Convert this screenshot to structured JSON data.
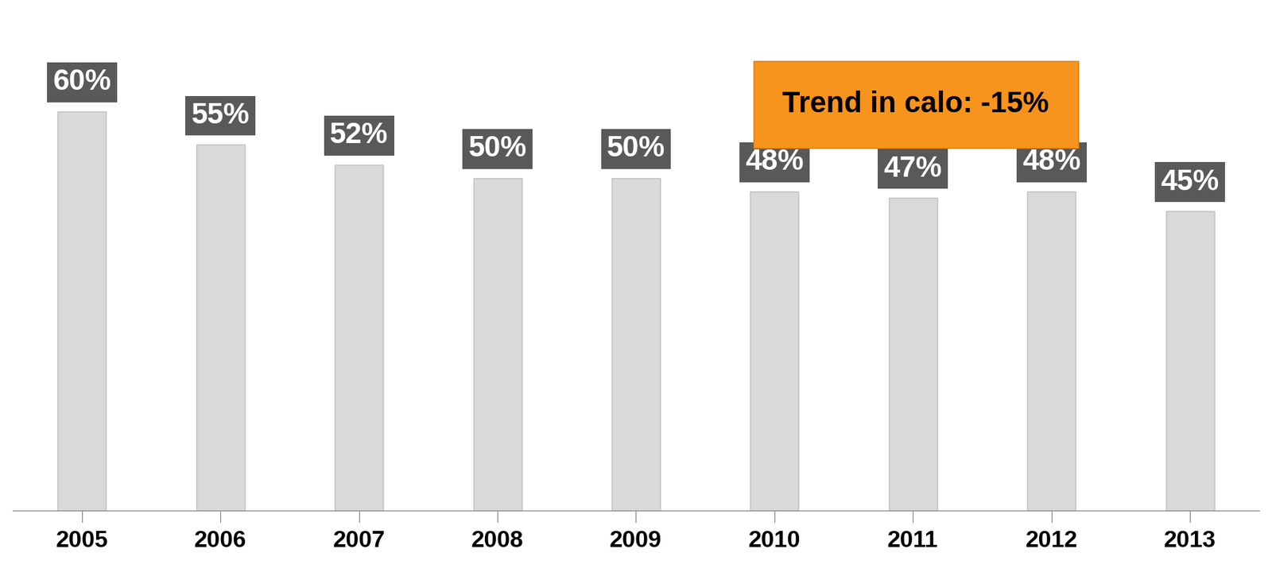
{
  "chart_data": {
    "type": "bar",
    "annotation": "Trend in calo: -15%",
    "categories": [
      "2005",
      "2006",
      "2007",
      "2008",
      "2009",
      "2010",
      "2011",
      "2012",
      "2013"
    ],
    "values": [
      60,
      55,
      52,
      50,
      50,
      48,
      47,
      48,
      45
    ],
    "value_labels": [
      "60%",
      "55%",
      "52%",
      "50%",
      "50%",
      "48%",
      "47%",
      "48%",
      "45%"
    ],
    "color": "#d9d9d9",
    "data_labels": true,
    "tick_labels": "x",
    "grid": false
  }
}
